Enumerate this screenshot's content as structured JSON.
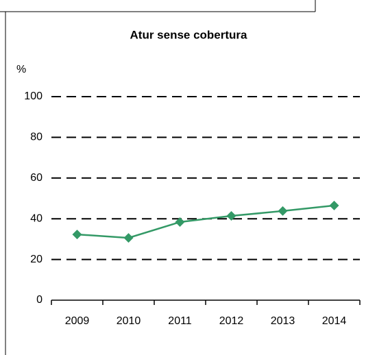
{
  "chart_data": {
    "type": "line",
    "title": "Atur sense cobertura",
    "ylabel": "%",
    "categories": [
      "2009",
      "2010",
      "2011",
      "2012",
      "2013",
      "2014"
    ],
    "values": [
      32.3,
      30.6,
      38.4,
      41.4,
      43.8,
      46.5
    ],
    "color": "#339966",
    "ylim": [
      0,
      100
    ],
    "yticks": [
      0,
      20,
      40,
      60,
      80,
      100
    ],
    "grid": true
  }
}
